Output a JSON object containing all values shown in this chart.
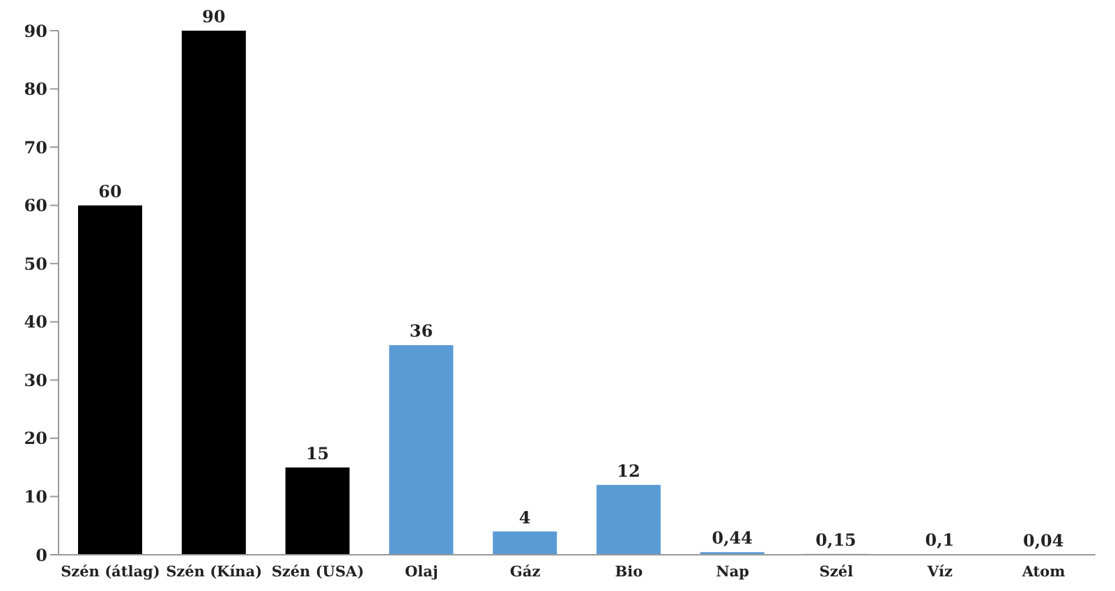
{
  "chart_data": {
    "type": "bar",
    "categories": [
      "Szén (átlag)",
      "Szén (Kína)",
      "Szén (USA)",
      "Olaj",
      "Gáz",
      "Bio",
      "Nap",
      "Szél",
      "Víz",
      "Atom"
    ],
    "values": [
      60,
      90,
      15,
      36,
      4,
      12,
      0.44,
      0.15,
      0.1,
      0.04
    ],
    "value_labels": [
      "60",
      "90",
      "15",
      "36",
      "4",
      "12",
      "0,44",
      "0,15",
      "0,1",
      "0,04"
    ],
    "colors": [
      "#000000",
      "#000000",
      "#000000",
      "#5b9bd5",
      "#5b9bd5",
      "#5b9bd5",
      "#5b9bd5",
      "#5b9bd5",
      "#5b9bd5",
      "#5b9bd5"
    ],
    "ylim": [
      0,
      90
    ],
    "yticks": [
      0,
      10,
      20,
      30,
      40,
      50,
      60,
      70,
      80,
      90
    ],
    "grid": false
  }
}
